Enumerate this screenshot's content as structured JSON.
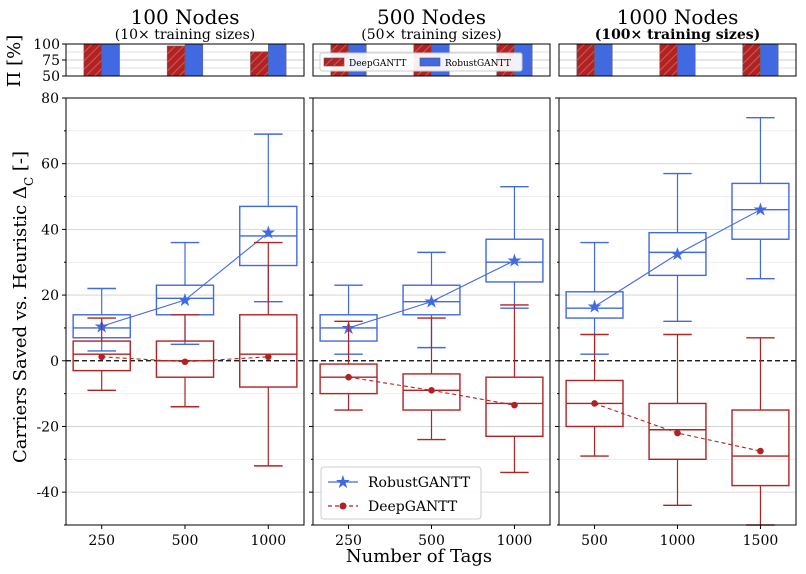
{
  "chart_data": {
    "type": "box",
    "xlabel": "Number of Tags",
    "ylabel": "Carriers Saved vs. Heuristic Δ_C [-]",
    "top_ylabel": "Π [%]",
    "ylim": [
      -50,
      80
    ],
    "top_ylim": [
      50,
      100
    ],
    "yticks": [
      "80",
      "60",
      "40",
      "20",
      "0",
      "-20",
      "-40"
    ],
    "top_yticks": [
      "100",
      "75",
      "50"
    ],
    "reference_line": 0,
    "grid": "horizontal",
    "colors": {
      "robust": "#4169e1",
      "deep": "#b22222",
      "deep_hatch": "#c85050"
    },
    "legend": {
      "position": "bottom-left of middle panel",
      "entries": [
        {
          "name": "RobustGANTT",
          "marker": "star",
          "line": "solid"
        },
        {
          "name": "DeepGANTT",
          "marker": "circle",
          "line": "dashed"
        }
      ]
    },
    "top_legend": {
      "position": "middle panel top strip",
      "entries": [
        "DeepGANTT",
        "RobustGANTT"
      ]
    },
    "panels": [
      {
        "title": "100 Nodes",
        "subtitle": "(10× training sizes)",
        "subtitle_bold": false,
        "categories": [
          "250",
          "500",
          "1000"
        ],
        "success_rate": {
          "DeepGANTT": [
            100,
            97,
            88
          ],
          "RobustGANTT": [
            100,
            100,
            100
          ]
        },
        "series": [
          {
            "name": "RobustGANTT",
            "mean": [
              10.5,
              18.5,
              39
            ],
            "boxes": [
              {
                "whislo": 3,
                "q1": 7,
                "med": 10,
                "q3": 14,
                "whishi": 22
              },
              {
                "whislo": 5,
                "q1": 14,
                "med": 19,
                "q3": 23,
                "whishi": 36
              },
              {
                "whislo": 18,
                "q1": 29,
                "med": 38,
                "q3": 47,
                "whishi": 69
              }
            ]
          },
          {
            "name": "DeepGANTT",
            "mean": [
              1.2,
              -0.3,
              1.2
            ],
            "boxes": [
              {
                "whislo": -9,
                "q1": -3,
                "med": 2,
                "q3": 6,
                "whishi": 13
              },
              {
                "whislo": -14,
                "q1": -5,
                "med": 0,
                "q3": 6,
                "whishi": 14
              },
              {
                "whislo": -32,
                "q1": -8,
                "med": 2,
                "q3": 14,
                "whishi": 36
              }
            ]
          }
        ]
      },
      {
        "title": "500 Nodes",
        "subtitle": "(50× training sizes)",
        "subtitle_bold": false,
        "categories": [
          "250",
          "500",
          "1000"
        ],
        "success_rate": {
          "DeepGANTT": [
            100,
            100,
            100
          ],
          "RobustGANTT": [
            100,
            100,
            100
          ]
        },
        "series": [
          {
            "name": "RobustGANTT",
            "mean": [
              10,
              18,
              30.5
            ],
            "boxes": [
              {
                "whislo": 2,
                "q1": 6,
                "med": 10,
                "q3": 14,
                "whishi": 23
              },
              {
                "whislo": 4,
                "q1": 14,
                "med": 18,
                "q3": 23,
                "whishi": 33
              },
              {
                "whislo": 16,
                "q1": 24,
                "med": 30,
                "q3": 37,
                "whishi": 53
              }
            ]
          },
          {
            "name": "DeepGANTT",
            "mean": [
              -5,
              -9,
              -13.5
            ],
            "boxes": [
              {
                "whislo": -15,
                "q1": -10,
                "med": -5,
                "q3": -1,
                "whishi": 12
              },
              {
                "whislo": -24,
                "q1": -15,
                "med": -9,
                "q3": -4,
                "whishi": 13
              },
              {
                "whislo": -34,
                "q1": -23,
                "med": -13,
                "q3": -5,
                "whishi": 17
              }
            ]
          }
        ]
      },
      {
        "title": "1000 Nodes",
        "subtitle": "(100× training sizes)",
        "subtitle_bold": true,
        "categories": [
          "500",
          "1000",
          "1500"
        ],
        "success_rate": {
          "DeepGANTT": [
            100,
            100,
            100
          ],
          "RobustGANTT": [
            100,
            100,
            100
          ]
        },
        "series": [
          {
            "name": "RobustGANTT",
            "mean": [
              16.5,
              32.5,
              46
            ],
            "boxes": [
              {
                "whislo": 2,
                "q1": 13,
                "med": 16,
                "q3": 21,
                "whishi": 36
              },
              {
                "whislo": 12,
                "q1": 26,
                "med": 33,
                "q3": 39,
                "whishi": 57
              },
              {
                "whislo": 25,
                "q1": 37,
                "med": 46,
                "q3": 54,
                "whishi": 74
              }
            ]
          },
          {
            "name": "DeepGANTT",
            "mean": [
              -13,
              -22,
              -27.5
            ],
            "boxes": [
              {
                "whislo": -29,
                "q1": -20,
                "med": -13,
                "q3": -6,
                "whishi": 8
              },
              {
                "whislo": -44,
                "q1": -30,
                "med": -21,
                "q3": -13,
                "whishi": 8
              },
              {
                "whislo": -50,
                "q1": -38,
                "med": -29,
                "q3": -15,
                "whishi": 7
              }
            ]
          }
        ]
      }
    ]
  }
}
